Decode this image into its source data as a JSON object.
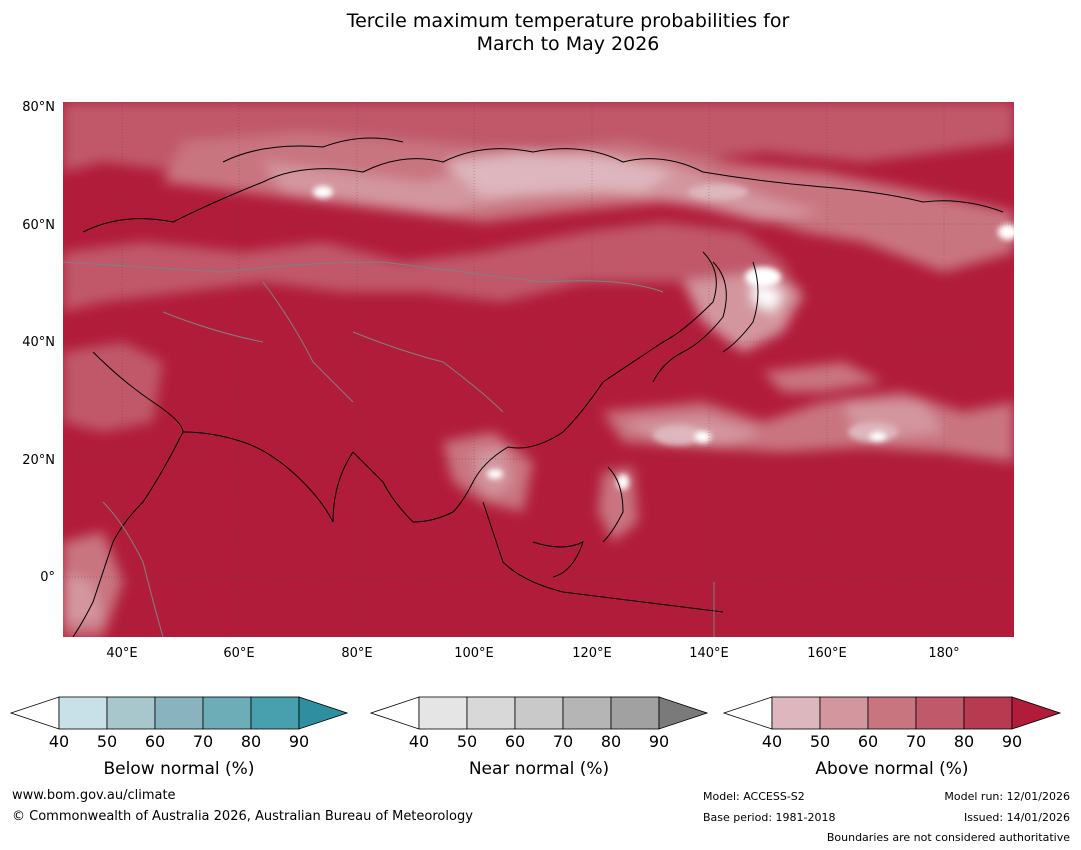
{
  "title_line1": "Tercile maximum temperature probabilities for",
  "title_line2": "March to May 2026",
  "lat_labels": [
    "80°N",
    "60°N",
    "40°N",
    "20°N",
    "0°"
  ],
  "lon_labels": [
    "40°E",
    "60°E",
    "80°E",
    "100°E",
    "120°E",
    "140°E",
    "160°E",
    "180°"
  ],
  "colorbars": [
    {
      "label": "Below normal (%)",
      "ticks": [
        "40",
        "50",
        "60",
        "70",
        "80",
        "90"
      ],
      "colors": [
        "#ffffff",
        "#c8e1e8",
        "#a7c7cc",
        "#89b4bf",
        "#6cadb8",
        "#48a0ae",
        "#2f8fa0"
      ]
    },
    {
      "label": "Near normal (%)",
      "ticks": [
        "40",
        "50",
        "60",
        "70",
        "80",
        "90"
      ],
      "colors": [
        "#ffffff",
        "#e5e5e5",
        "#d8d8d8",
        "#c9c9c9",
        "#b5b5b5",
        "#a1a1a1",
        "#7a7a7a"
      ]
    },
    {
      "label": "Above normal (%)",
      "ticks": [
        "40",
        "50",
        "60",
        "70",
        "80",
        "90"
      ],
      "colors": [
        "#ffffff",
        "#deb6bd",
        "#d3969f",
        "#c97580",
        "#c0596a",
        "#b83a50",
        "#b11c3a"
      ]
    }
  ],
  "footer": {
    "website": "www.bom.gov.au/climate",
    "copyright": "© Commonwealth of Australia 2026, Australian Bureau of Meteorology",
    "model": "Model: ACCESS-S2",
    "base_period": "Base period: 1981-2018",
    "model_run": "Model run: 12/01/2026",
    "issued": "Issued: 14/01/2026",
    "disclaimer": "Boundaries are not considered authoritative"
  },
  "colors": {
    "dominant": "#b11c3a",
    "land_light": "#d3969f",
    "near_white": "#deb6bd"
  }
}
